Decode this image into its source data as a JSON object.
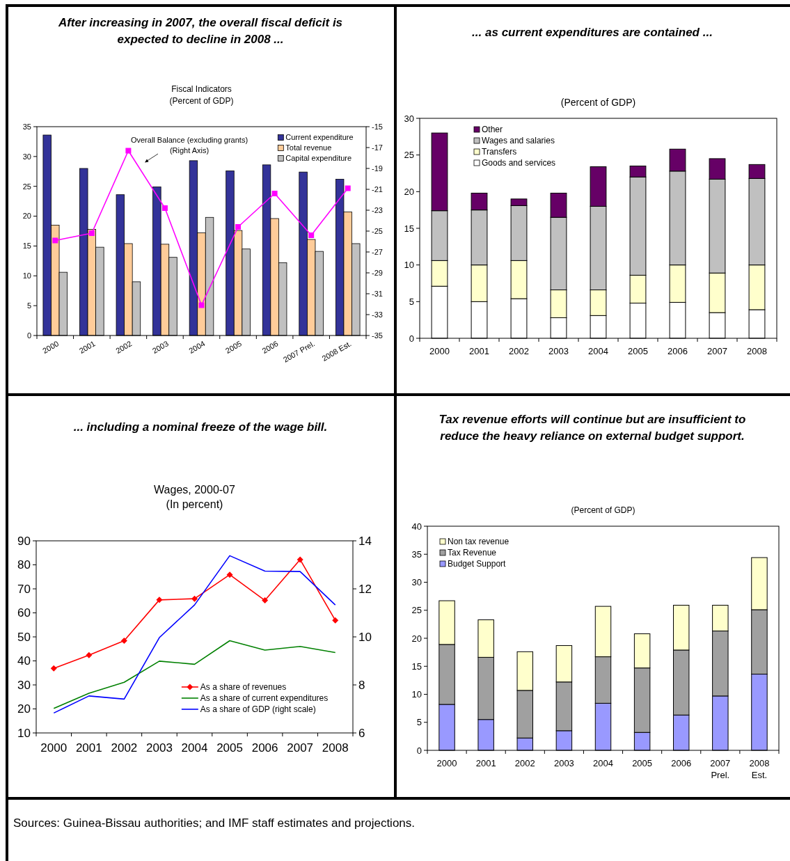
{
  "chart_data": [
    {
      "type": "bar",
      "title": "After increasing in 2007, the overall fiscal deficit is expected to decline in 2008 ...",
      "subtitle": "Fiscal Indicators\n(Percent of GDP)",
      "categories": [
        "2000",
        "2001",
        "2002",
        "2003",
        "2004",
        "2005",
        "2006",
        "2007 Prel.",
        "2008 Est."
      ],
      "series": [
        {
          "name": "Current expenditure",
          "color": "#333399",
          "values": [
            33.6,
            28.0,
            23.6,
            24.9,
            29.3,
            27.6,
            28.6,
            27.4,
            26.2
          ]
        },
        {
          "name": "Total revenue",
          "color": "#ffcc99",
          "values": [
            18.5,
            17.8,
            15.4,
            15.3,
            17.2,
            17.6,
            19.6,
            16.1,
            20.7
          ]
        },
        {
          "name": "Capital expenditure",
          "color": "#c0c0c0",
          "values": [
            10.6,
            14.8,
            9.0,
            13.1,
            19.8,
            14.5,
            12.2,
            14.1,
            15.4
          ]
        },
        {
          "type": "line",
          "axis": "y2",
          "color": "#ff00ff",
          "marker": "square",
          "values": [
            -25.9,
            -25.2,
            -17.3,
            -22.8,
            -32.1,
            -24.6,
            -21.4,
            -25.4,
            -20.9
          ]
        }
      ],
      "ylim": [
        0,
        35
      ],
      "yticks": [
        0,
        5,
        10,
        15,
        20,
        25,
        30,
        35
      ],
      "y2lim": [
        -35,
        -15
      ],
      "y2ticks": [
        -35,
        -33,
        -31,
        -29,
        -27,
        -25,
        -23,
        -21,
        -19,
        -17,
        -15
      ],
      "legend": "top right",
      "annotations": [
        "Overall Balance (excluding grants)\n(Right Axis)"
      ]
    },
    {
      "type": "bar",
      "stacked": true,
      "title": "... as current expenditures are contained ...",
      "subtitle": "(Percent of GDP)",
      "categories": [
        "2000",
        "2001",
        "2002",
        "2003",
        "2004",
        "2005",
        "2006",
        "2007",
        "2008"
      ],
      "series": [
        {
          "name": "Goods and services",
          "color": "#ffffff",
          "values": [
            7.1,
            5.0,
            5.4,
            2.8,
            3.1,
            4.8,
            4.9,
            3.5,
            3.9
          ]
        },
        {
          "name": "Transfers",
          "color": "#ffffcc",
          "values": [
            3.5,
            5.0,
            5.2,
            3.8,
            3.5,
            3.8,
            5.1,
            5.4,
            6.1
          ]
        },
        {
          "name": "Wages and salaries",
          "color": "#c0c0c0",
          "values": [
            6.8,
            7.5,
            7.5,
            9.9,
            11.4,
            13.4,
            12.8,
            12.8,
            11.8
          ]
        },
        {
          "name": "Other",
          "color": "#660066",
          "values": [
            10.6,
            2.3,
            0.9,
            3.3,
            5.4,
            1.5,
            3.0,
            2.8,
            1.9
          ]
        }
      ],
      "ylim": [
        0,
        30
      ],
      "yticks": [
        0,
        5,
        10,
        15,
        20,
        25,
        30
      ],
      "legend": "top left"
    },
    {
      "type": "line",
      "title": "... including a nominal freeze of the wage bill.",
      "subtitle": "Wages, 2000-07\n(In percent)",
      "categories": [
        "2000",
        "2001",
        "2002",
        "2003",
        "2004",
        "2005",
        "2006",
        "2007",
        "2008"
      ],
      "series": [
        {
          "name": "As a share of revenues",
          "color": "#ff0000",
          "marker": "diamond",
          "values": [
            36.9,
            42.4,
            48.4,
            65.4,
            65.9,
            75.9,
            65.2,
            82.2,
            56.9
          ]
        },
        {
          "name": "As a share of current expenditures",
          "color": "#008000",
          "values": [
            20.2,
            26.5,
            31.1,
            39.9,
            38.6,
            48.4,
            44.5,
            46.0,
            43.5
          ]
        },
        {
          "name": "As a share of GDP (right scale)",
          "color": "#0000ff",
          "axis": "y2",
          "values": [
            6.83,
            7.54,
            7.41,
            9.97,
            11.33,
            13.38,
            12.74,
            12.72,
            11.33
          ]
        }
      ],
      "ylim": [
        10,
        90
      ],
      "yticks": [
        10,
        20,
        30,
        40,
        50,
        60,
        70,
        80,
        90
      ],
      "y2lim": [
        6,
        14
      ],
      "y2ticks": [
        6,
        8,
        10,
        12,
        14
      ],
      "legend": "bottom right"
    },
    {
      "type": "bar",
      "stacked": true,
      "title": "Tax revenue efforts will continue but are insufficient to reduce the heavy reliance on external budget support.",
      "subtitle": "(Percent of GDP)",
      "categories": [
        "2000",
        "2001",
        "2002",
        "2003",
        "2004",
        "2005",
        "2006",
        "2007\nPrel.",
        "2008\nEst."
      ],
      "series": [
        {
          "name": "Budget Support",
          "color": "#9999ff",
          "values": [
            8.2,
            5.5,
            2.2,
            3.5,
            8.4,
            3.2,
            6.3,
            9.7,
            13.6
          ]
        },
        {
          "name": "Tax Revenue",
          "color": "#a0a0a0",
          "values": [
            10.7,
            11.1,
            8.5,
            8.7,
            8.3,
            11.5,
            11.6,
            11.6,
            11.5
          ]
        },
        {
          "name": "Non tax revenue",
          "color": "#ffffcc",
          "values": [
            7.8,
            6.7,
            6.9,
            6.5,
            9.0,
            6.1,
            8.0,
            4.6,
            9.3
          ]
        }
      ],
      "ylim": [
        0,
        40
      ],
      "yticks": [
        0,
        5,
        10,
        15,
        20,
        25,
        30,
        35,
        40
      ],
      "legend": "top left",
      "annotations": [
        "Sources: Guinea-Bissau authorities; and IMF staff estimates and projections."
      ]
    }
  ]
}
